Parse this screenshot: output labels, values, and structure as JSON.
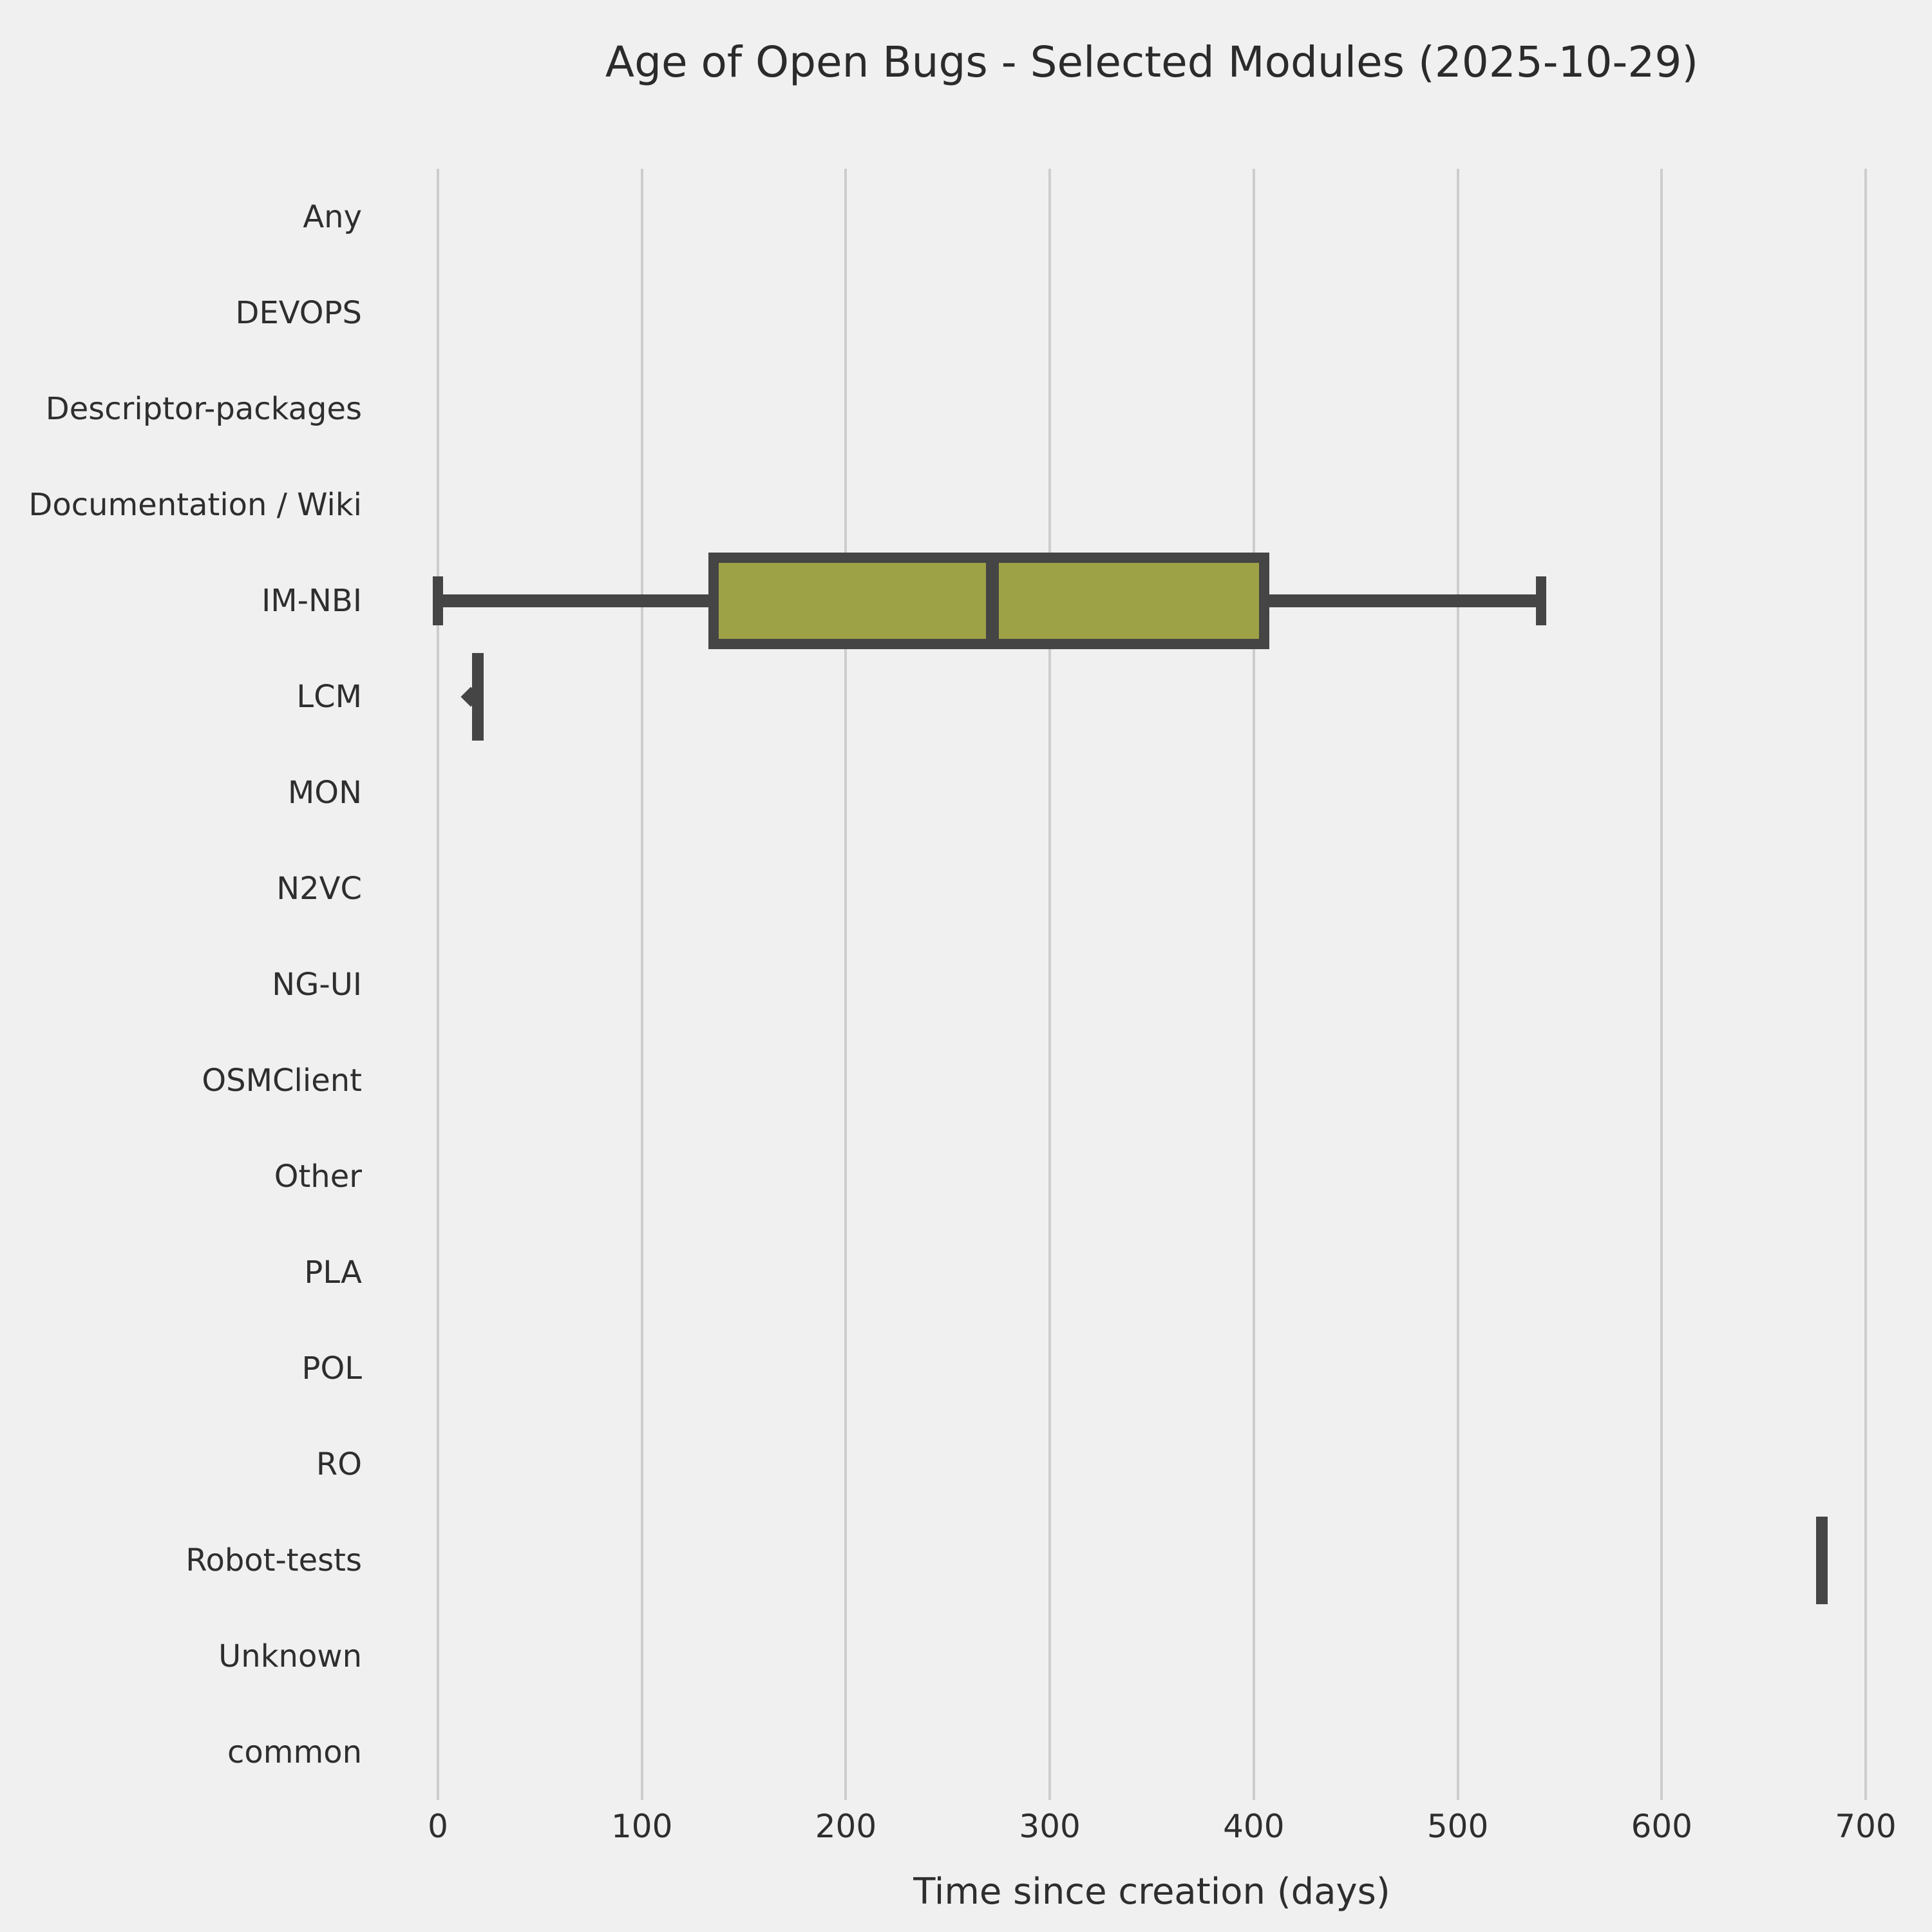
{
  "chart_data": {
    "type": "boxplot",
    "orientation": "horizontal",
    "title": "Age of Open Bugs - Selected Modules (2025-10-29)",
    "xlabel": "Time since creation (days)",
    "xticks": [
      0,
      100,
      200,
      300,
      400,
      500,
      600,
      700
    ],
    "xlim": [
      -35,
      735
    ],
    "grid": true,
    "legend": "none",
    "categories": [
      "Any",
      "DEVOPS",
      "Descriptor-packages",
      "Documentation / Wiki",
      "IM-NBI",
      "LCM",
      "MON",
      "N2VC",
      "NG-UI",
      "OSMClient",
      "Other",
      "PLA",
      "POL",
      "RO",
      "Robot-tests",
      "Unknown",
      "common"
    ],
    "boxes": [
      {
        "category": "IM-NBI",
        "whislo": 0,
        "q1": 135,
        "med": 272,
        "q3": 405,
        "whishi": 541,
        "fliers": []
      },
      {
        "category": "LCM",
        "whislo": 16,
        "q1": 17,
        "med": 18,
        "q3": 22,
        "whishi": 23,
        "fliers": [
          16
        ]
      },
      {
        "category": "Robot-tests",
        "whislo": 676,
        "q1": 676,
        "med": 678,
        "q3": 681,
        "whishi": 681,
        "fliers": []
      }
    ],
    "colors": {
      "background": "#f0f0f0",
      "grid": "#cdcdcd",
      "box_fill": "#9ea246",
      "line": "#454545",
      "text": "#2e2e2e"
    }
  }
}
